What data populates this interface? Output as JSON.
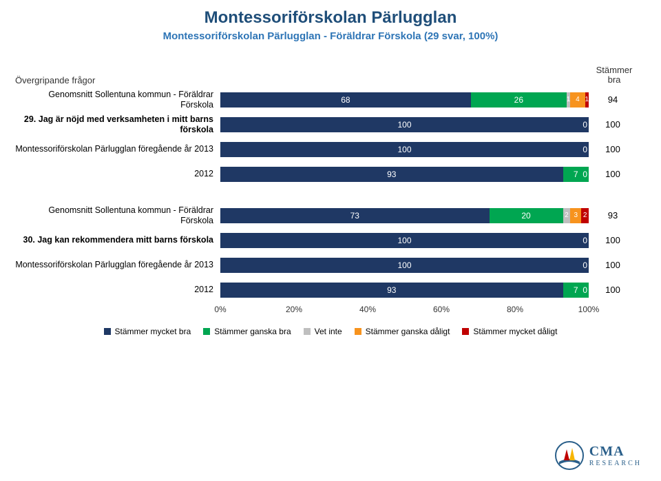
{
  "title": "Montessoriförskolan Pärlugglan",
  "subtitle": "Montessoriförskolan Pärlugglan - Föräldrar Förskola (29 svar, 100%)",
  "section_label": "Övergripande frågor",
  "side_header": "Stämmer bra",
  "colors": {
    "mycket_bra": "#1f3864",
    "ganska_bra": "#00a651",
    "vet_inte": "#bfbfbf",
    "ganska_dalig": "#f7931e",
    "mycket_dalig": "#c00000",
    "background": "#ffffff",
    "title_color": "#1f4e79",
    "subtitle_color": "#2e75b6"
  },
  "font_sizes": {
    "title": 24,
    "subtitle": 15,
    "row_label": 12.5,
    "bar_value": 12,
    "axis": 12,
    "legend": 12,
    "side_val": 13
  },
  "rows": [
    {
      "label": "Genomsnitt Sollentuna kommun - Föräldrar Förskola",
      "bold": false,
      "segments": [
        68,
        26,
        1,
        4,
        1
      ],
      "side": 94
    },
    {
      "label": "29. Jag är nöjd med verksamheten i mitt barns förskola",
      "bold": true,
      "segments": [
        100,
        0,
        0,
        0,
        0
      ],
      "side": 100,
      "zero_text": "0"
    },
    {
      "label": "Montessoriförskolan Pärlugglan föregående år 2013",
      "bold": false,
      "segments": [
        100,
        0,
        0,
        0,
        0
      ],
      "side": 100,
      "zero_text": "0"
    },
    {
      "label": "2012",
      "bold": false,
      "segments": [
        93,
        7,
        0,
        0,
        0
      ],
      "side": 100,
      "zero_text": "0"
    },
    {
      "gap": true
    },
    {
      "label": "Genomsnitt Sollentuna kommun - Föräldrar Förskola",
      "bold": false,
      "segments": [
        73,
        20,
        2,
        3,
        2
      ],
      "side": 93
    },
    {
      "label": "30. Jag kan rekommendera mitt barns förskola",
      "bold": true,
      "segments": [
        100,
        0,
        0,
        0,
        0
      ],
      "side": 100,
      "zero_text": "0"
    },
    {
      "label": "Montessoriförskolan Pärlugglan föregående år 2013",
      "bold": false,
      "segments": [
        100,
        0,
        0,
        0,
        0
      ],
      "side": 100,
      "zero_text": "0"
    },
    {
      "label": "2012",
      "bold": false,
      "segments": [
        93,
        7,
        0,
        0,
        0
      ],
      "side": 100,
      "zero_text": "0"
    }
  ],
  "axis": {
    "ticks": [
      0,
      20,
      40,
      60,
      80,
      100
    ],
    "suffix": "%"
  },
  "legend": [
    {
      "label": "Stämmer mycket bra",
      "color_key": "mycket_bra"
    },
    {
      "label": "Stämmer ganska bra",
      "color_key": "ganska_bra"
    },
    {
      "label": "Vet inte",
      "color_key": "vet_inte"
    },
    {
      "label": "Stämmer ganska dåligt",
      "color_key": "ganska_dalig"
    },
    {
      "label": "Stämmer mycket dåligt",
      "color_key": "mycket_dalig"
    }
  ],
  "logo": {
    "name": "CMA",
    "sub": "RESEARCH"
  }
}
